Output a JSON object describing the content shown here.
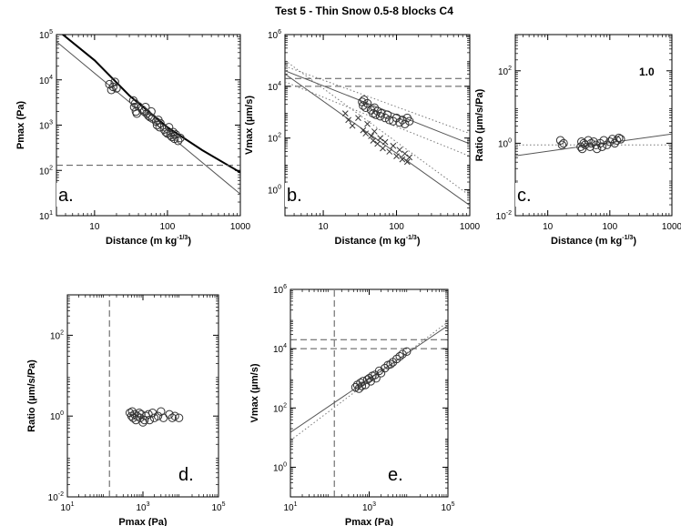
{
  "figure_title": "Test 5 - Thin Snow 0.5-8 blocks C4",
  "chart_data": [
    {
      "panel": "a.",
      "type": "scatter",
      "xlabel": "Distance (m kg",
      "xlabel_sup": "-1/3",
      "xlabel_end": ")",
      "ylabel": "Pmax (Pa)",
      "xscale": "log",
      "yscale": "log",
      "xlim": [
        3,
        1000
      ],
      "ylim": [
        10,
        100000
      ],
      "xticks": [
        {
          "v": 10,
          "l": "10"
        },
        {
          "v": 100,
          "l": "100"
        },
        {
          "v": 1000,
          "l": "1000"
        }
      ],
      "yticks": [
        {
          "v": 10,
          "b": "10",
          "e": "1"
        },
        {
          "v": 100,
          "b": "10",
          "e": "2"
        },
        {
          "v": 1000,
          "b": "10",
          "e": "3"
        },
        {
          "v": 10000,
          "b": "10",
          "e": "4"
        },
        {
          "v": 100000,
          "b": "10",
          "e": "5"
        }
      ],
      "points": {
        "o": [
          [
            16,
            8000
          ],
          [
            17,
            6000
          ],
          [
            18,
            7000
          ],
          [
            19,
            9000
          ],
          [
            20,
            6500
          ],
          [
            34,
            3500
          ],
          [
            35,
            2500
          ],
          [
            36,
            3000
          ],
          [
            37,
            2000
          ],
          [
            38,
            1800
          ],
          [
            40,
            2600
          ],
          [
            45,
            2200
          ],
          [
            48,
            2000
          ],
          [
            50,
            2500
          ],
          [
            52,
            1800
          ],
          [
            55,
            1600
          ],
          [
            58,
            1500
          ],
          [
            60,
            2000
          ],
          [
            62,
            1400
          ],
          [
            70,
            1200
          ],
          [
            72,
            1000
          ],
          [
            75,
            1300
          ],
          [
            78,
            900
          ],
          [
            80,
            1100
          ],
          [
            90,
            800
          ],
          [
            95,
            700
          ],
          [
            100,
            650
          ],
          [
            105,
            900
          ],
          [
            110,
            600
          ],
          [
            115,
            550
          ],
          [
            120,
            700
          ],
          [
            125,
            500
          ],
          [
            130,
            620
          ],
          [
            140,
            450
          ],
          [
            150,
            520
          ]
        ]
      },
      "lines": [
        {
          "style": "solid-thick",
          "points": [
            [
              3,
              130000
            ],
            [
              10,
              27000
            ],
            [
              30,
              4500
            ],
            [
              100,
              900
            ],
            [
              300,
              280
            ],
            [
              1000,
              90
            ]
          ]
        },
        {
          "style": "solid",
          "points": [
            [
              3,
              70000
            ],
            [
              1000,
              30
            ]
          ]
        },
        {
          "style": "dashed",
          "points": [
            [
              3,
              130
            ],
            [
              1000,
              130
            ]
          ]
        }
      ]
    },
    {
      "panel": "b.",
      "type": "scatter",
      "xlabel": "Distance (m kg",
      "xlabel_sup": "-1/3",
      "xlabel_end": ")",
      "ylabel": "Vmax (µm/s)",
      "xscale": "log",
      "yscale": "log",
      "xlim": [
        3,
        1000
      ],
      "ylim": [
        0.1,
        1000000
      ],
      "xticks": [
        {
          "v": 10,
          "l": "10"
        },
        {
          "v": 100,
          "l": "100"
        },
        {
          "v": 1000,
          "l": "1000"
        }
      ],
      "yticks": [
        {
          "v": 1,
          "b": "10",
          "e": "0"
        },
        {
          "v": 100,
          "b": "10",
          "e": "2"
        },
        {
          "v": 10000,
          "b": "10",
          "e": "4"
        },
        {
          "v": 1000000,
          "b": "10",
          "e": "6"
        }
      ],
      "points": {
        "o": [
          [
            34,
            2500
          ],
          [
            35,
            1800
          ],
          [
            36,
            3000
          ],
          [
            38,
            1500
          ],
          [
            40,
            2200
          ],
          [
            45,
            1200
          ],
          [
            48,
            900
          ],
          [
            50,
            1500
          ],
          [
            52,
            800
          ],
          [
            55,
            1100
          ],
          [
            60,
            700
          ],
          [
            62,
            900
          ],
          [
            70,
            600
          ],
          [
            75,
            800
          ],
          [
            80,
            500
          ],
          [
            90,
            450
          ],
          [
            100,
            600
          ],
          [
            110,
            400
          ],
          [
            120,
            500
          ],
          [
            130,
            350
          ],
          [
            140,
            600
          ],
          [
            150,
            450
          ]
        ],
        "x": [
          [
            20,
            900
          ],
          [
            22,
            500
          ],
          [
            25,
            300
          ],
          [
            30,
            600
          ],
          [
            35,
            200
          ],
          [
            38,
            150
          ],
          [
            40,
            350
          ],
          [
            45,
            120
          ],
          [
            48,
            80
          ],
          [
            50,
            180
          ],
          [
            55,
            60
          ],
          [
            60,
            100
          ],
          [
            65,
            40
          ],
          [
            70,
            70
          ],
          [
            80,
            30
          ],
          [
            90,
            50
          ],
          [
            100,
            20
          ],
          [
            110,
            35
          ],
          [
            120,
            15
          ],
          [
            130,
            25
          ],
          [
            140,
            12
          ],
          [
            150,
            18
          ]
        ]
      },
      "lines": [
        {
          "style": "solid",
          "points": [
            [
              3,
              40000
            ],
            [
              1000,
              60
            ]
          ]
        },
        {
          "style": "solid",
          "points": [
            [
              3,
              30000
            ],
            [
              1000,
              0.25
            ]
          ]
        },
        {
          "style": "dotted",
          "points": [
            [
              3,
              100000
            ],
            [
              1000,
              0.6
            ]
          ]
        },
        {
          "style": "dotted",
          "points": [
            [
              3,
              15000
            ],
            [
              1000,
              20
            ]
          ]
        },
        {
          "style": "dotted",
          "points": [
            [
              3,
              60000
            ],
            [
              1000,
              150
            ]
          ]
        },
        {
          "style": "dashed",
          "points": [
            [
              3,
              20000
            ],
            [
              1000,
              20000
            ]
          ]
        },
        {
          "style": "dashed",
          "points": [
            [
              3,
              10000
            ],
            [
              1000,
              10000
            ]
          ]
        }
      ]
    },
    {
      "panel": "c.",
      "type": "scatter",
      "annotation": "1.0",
      "xlabel": "Distance (m kg",
      "xlabel_sup": "-1/3",
      "xlabel_end": ")",
      "ylabel": "Ratio (µm/s/Pa)",
      "xscale": "log",
      "yscale": "log",
      "xlim": [
        3,
        1000
      ],
      "ylim": [
        0.01,
        1000
      ],
      "xticks": [
        {
          "v": 10,
          "l": "10"
        },
        {
          "v": 100,
          "l": "100"
        },
        {
          "v": 1000,
          "l": "1000"
        }
      ],
      "yticks": [
        {
          "v": 0.01,
          "b": "10",
          "e": "-2"
        },
        {
          "v": 1,
          "b": "10",
          "e": "0"
        },
        {
          "v": 100,
          "b": "10",
          "e": "2"
        }
      ],
      "points": {
        "o": [
          [
            16,
            1.2
          ],
          [
            17,
            0.9
          ],
          [
            18,
            1.0
          ],
          [
            34,
            0.8
          ],
          [
            35,
            1.1
          ],
          [
            36,
            0.7
          ],
          [
            38,
            1.0
          ],
          [
            40,
            0.9
          ],
          [
            45,
            1.2
          ],
          [
            48,
            0.8
          ],
          [
            50,
            1.0
          ],
          [
            55,
            1.1
          ],
          [
            60,
            0.9
          ],
          [
            62,
            0.7
          ],
          [
            70,
            1.0
          ],
          [
            75,
            0.8
          ],
          [
            80,
            1.2
          ],
          [
            90,
            0.9
          ],
          [
            100,
            1.1
          ],
          [
            110,
            1.3
          ],
          [
            120,
            1.0
          ],
          [
            130,
            1.2
          ],
          [
            140,
            1.4
          ],
          [
            150,
            1.3
          ]
        ]
      },
      "lines": [
        {
          "style": "solid",
          "points": [
            [
              3,
              0.45
            ],
            [
              1000,
              1.8
            ]
          ]
        },
        {
          "style": "dotted",
          "points": [
            [
              3,
              0.9
            ],
            [
              1000,
              0.9
            ]
          ]
        }
      ]
    },
    {
      "panel": "d.",
      "type": "scatter",
      "xlabel": "Pmax (Pa)",
      "ylabel": "Ratio (µm/s/Pa)",
      "xscale": "log",
      "yscale": "log",
      "xlim": [
        10,
        100000
      ],
      "ylim": [
        0.01,
        1000
      ],
      "xticks": [
        {
          "v": 10,
          "b": "10",
          "e": "1"
        },
        {
          "v": 1000,
          "b": "10",
          "e": "3"
        },
        {
          "v": 100000,
          "b": "10",
          "e": "5"
        }
      ],
      "yticks": [
        {
          "v": 0.01,
          "b": "10",
          "e": "-2"
        },
        {
          "v": 1,
          "b": "10",
          "e": "0"
        },
        {
          "v": 100,
          "b": "10",
          "e": "2"
        }
      ],
      "points": {
        "o": [
          [
            450,
            1.2
          ],
          [
            500,
            1.0
          ],
          [
            520,
            1.3
          ],
          [
            550,
            0.9
          ],
          [
            600,
            1.1
          ],
          [
            650,
            0.8
          ],
          [
            700,
            1.0
          ],
          [
            800,
            1.2
          ],
          [
            850,
            0.9
          ],
          [
            900,
            1.1
          ],
          [
            1000,
            0.7
          ],
          [
            1100,
            0.8
          ],
          [
            1200,
            1.0
          ],
          [
            1400,
            1.1
          ],
          [
            1500,
            0.8
          ],
          [
            1800,
            1.2
          ],
          [
            2000,
            0.9
          ],
          [
            2500,
            1.0
          ],
          [
            3000,
            1.3
          ],
          [
            3500,
            0.9
          ],
          [
            5000,
            1.1
          ],
          [
            6000,
            0.9
          ],
          [
            7000,
            1.0
          ],
          [
            9000,
            0.9
          ]
        ]
      },
      "lines": [
        {
          "style": "dashed",
          "points": [
            [
              130,
              0.01
            ],
            [
              130,
              1000
            ]
          ]
        }
      ]
    },
    {
      "panel": "e.",
      "type": "scatter",
      "xlabel": "Pmax (Pa)",
      "ylabel": "Vmax (µm/s)",
      "xscale": "log",
      "yscale": "log",
      "xlim": [
        10,
        100000
      ],
      "ylim": [
        0.1,
        1000000
      ],
      "xticks": [
        {
          "v": 10,
          "b": "10",
          "e": "1"
        },
        {
          "v": 1000,
          "b": "10",
          "e": "3"
        },
        {
          "v": 100000,
          "b": "10",
          "e": "5"
        }
      ],
      "yticks": [
        {
          "v": 1,
          "b": "10",
          "e": "0"
        },
        {
          "v": 100,
          "b": "10",
          "e": "2"
        },
        {
          "v": 10000,
          "b": "10",
          "e": "4"
        },
        {
          "v": 1000000,
          "b": "10",
          "e": "6"
        }
      ],
      "points": {
        "o": [
          [
            450,
            500
          ],
          [
            500,
            600
          ],
          [
            550,
            450
          ],
          [
            600,
            700
          ],
          [
            650,
            550
          ],
          [
            700,
            800
          ],
          [
            800,
            600
          ],
          [
            900,
            900
          ],
          [
            1000,
            1000
          ],
          [
            1100,
            800
          ],
          [
            1200,
            1200
          ],
          [
            1400,
            1300
          ],
          [
            1500,
            1000
          ],
          [
            1800,
            1800
          ],
          [
            2000,
            1500
          ],
          [
            2500,
            2200
          ],
          [
            3000,
            2800
          ],
          [
            3500,
            3000
          ],
          [
            4000,
            3500
          ],
          [
            5000,
            4500
          ],
          [
            6000,
            5500
          ],
          [
            7000,
            6500
          ],
          [
            9000,
            8000
          ]
        ]
      },
      "lines": [
        {
          "style": "solid",
          "points": [
            [
              10,
              15
            ],
            [
              100000,
              60000
            ]
          ]
        },
        {
          "style": "dotted",
          "points": [
            [
              10,
              8
            ],
            [
              100000,
              80000
            ]
          ]
        },
        {
          "style": "dashed",
          "points": [
            [
              10,
              20000
            ],
            [
              100000,
              20000
            ]
          ]
        },
        {
          "style": "dashed",
          "points": [
            [
              10,
              10000
            ],
            [
              100000,
              10000
            ]
          ]
        },
        {
          "style": "dashed",
          "points": [
            [
              130,
              0.1
            ],
            [
              130,
              1000000
            ]
          ]
        }
      ]
    }
  ]
}
